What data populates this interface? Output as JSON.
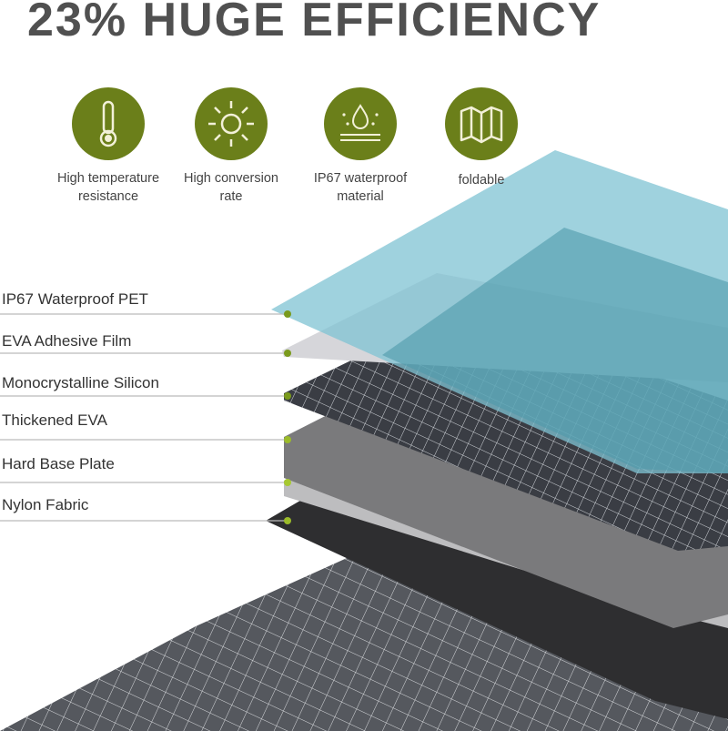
{
  "title": "23% HUGE EFFICIENCY",
  "features": [
    {
      "icon": "thermometer-icon",
      "label_line1": "High temperature",
      "label_line2": "resistance"
    },
    {
      "icon": "sun-icon",
      "label_line1": "High conversion",
      "label_line2": "rate"
    },
    {
      "icon": "waterproof-drop-icon",
      "label_line1": "IP67 waterproof",
      "label_line2": "material"
    },
    {
      "icon": "folded-map-icon",
      "label_line1": "foldable",
      "label_line2": ""
    }
  ],
  "layers": [
    {
      "label": "IP67 Waterproof PET"
    },
    {
      "label": "EVA Adhesive Film"
    },
    {
      "label": "Monocrystalline Silicon"
    },
    {
      "label": "Thickened EVA"
    },
    {
      "label": "Hard Base Plate"
    },
    {
      "label": "Nylon Fabric"
    }
  ],
  "colors": {
    "title": "#505050",
    "icon_bg": "#6b7f1a",
    "dot": "#7a9a1c",
    "pet": "#7fc3d3"
  }
}
